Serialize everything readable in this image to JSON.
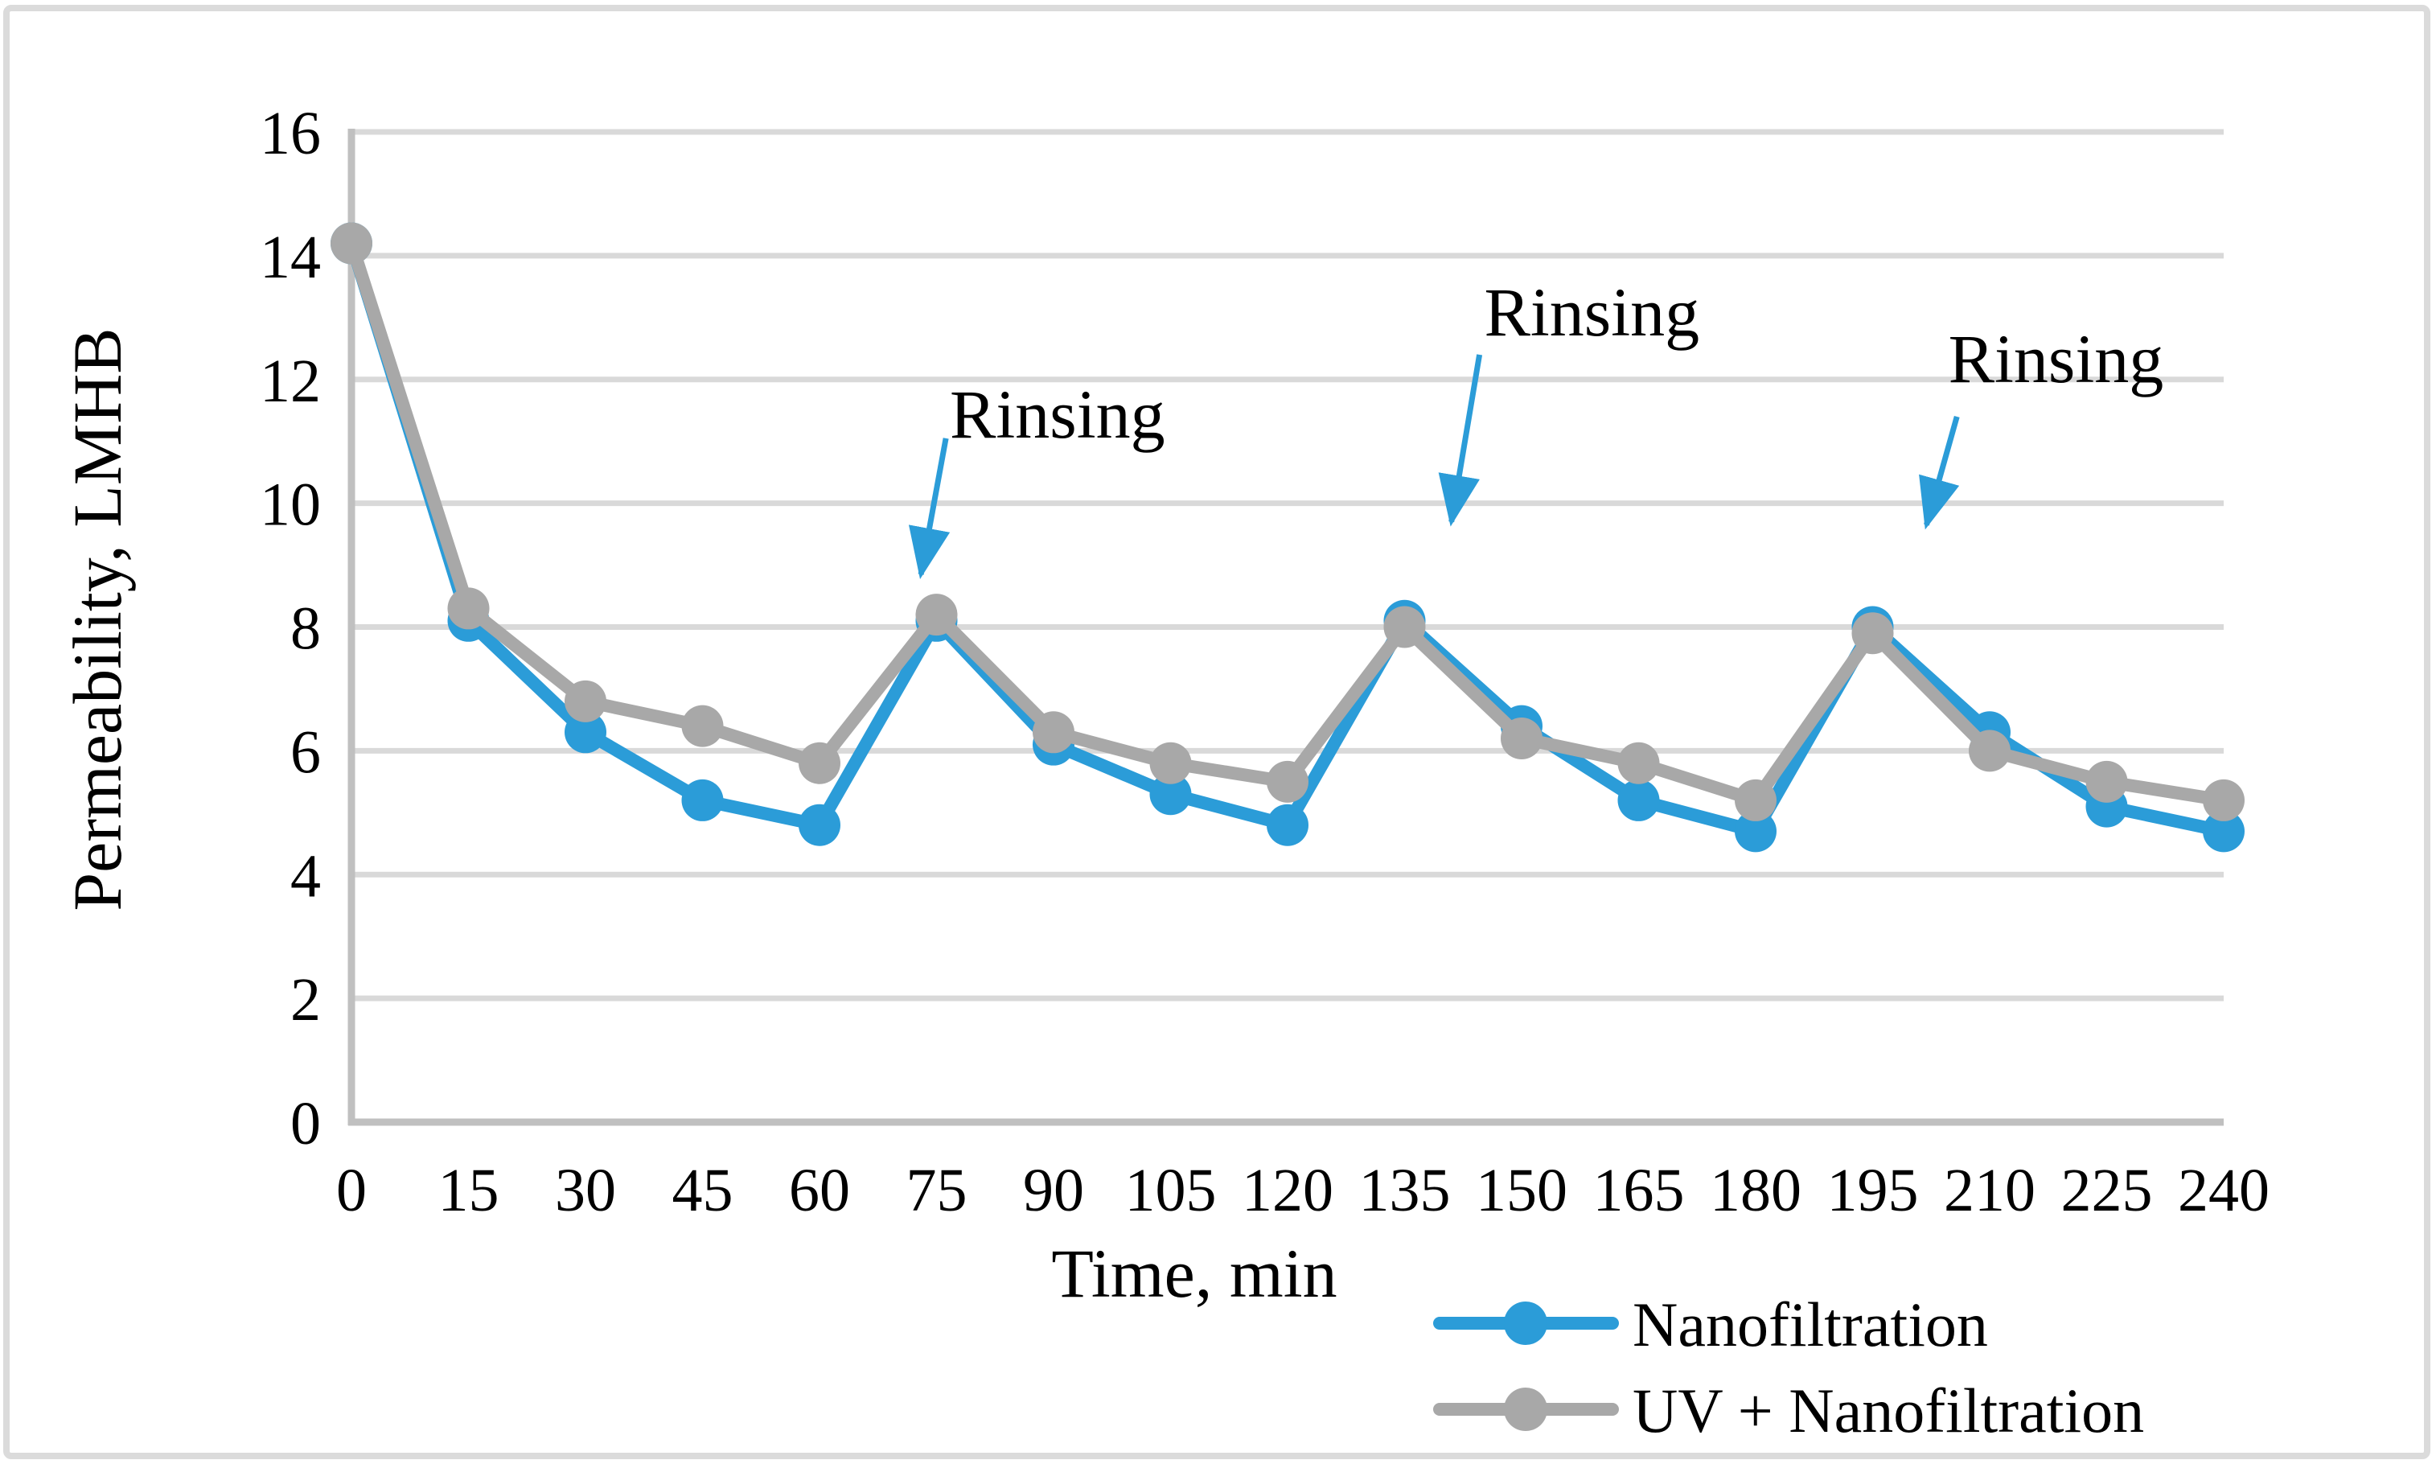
{
  "figure": {
    "background": "#FFFFFF",
    "border_color": "#DBDBDB"
  },
  "chart_data": {
    "type": "line",
    "title": "",
    "xlabel": "Time, min",
    "ylabel": "Permeability, LMHB",
    "x": [
      0,
      15,
      30,
      45,
      60,
      75,
      90,
      105,
      120,
      135,
      150,
      165,
      180,
      195,
      210,
      225,
      240
    ],
    "x_tick_labels": [
      "0",
      "15",
      "30",
      "45",
      "60",
      "75",
      "90",
      "105",
      "120",
      "135",
      "150",
      "165",
      "180",
      "195",
      "210",
      "225",
      "240"
    ],
    "y_ticks": [
      0,
      2,
      4,
      6,
      8,
      10,
      12,
      14,
      16
    ],
    "y_tick_labels": [
      "0",
      "2",
      "4",
      "6",
      "8",
      "10",
      "12",
      "14",
      "16"
    ],
    "ylim": [
      0,
      16
    ],
    "xlim": [
      0,
      240
    ],
    "grid": "horizontal",
    "legend_position": "bottom-right",
    "series": [
      {
        "name": "Nanofiltration",
        "color": "#2B9CD8",
        "values": [
          14.2,
          8.1,
          6.3,
          5.2,
          4.8,
          8.1,
          6.1,
          5.3,
          4.8,
          8.1,
          6.4,
          5.2,
          4.7,
          8.0,
          6.3,
          5.1,
          4.7
        ]
      },
      {
        "name": "UV + Nanofiltration",
        "color": "#A8A8A8",
        "values": [
          14.2,
          8.3,
          6.8,
          6.4,
          5.8,
          8.2,
          6.3,
          5.8,
          5.5,
          8.0,
          6.2,
          5.8,
          5.2,
          7.9,
          6.0,
          5.5,
          5.2
        ]
      }
    ],
    "annotations": [
      {
        "label": "Rinsing",
        "text_x": 90.5,
        "text_y": 11.45,
        "arrow_from_x": 76.2,
        "arrow_from_y": 11.05,
        "arrow_to_x": 73.0,
        "arrow_to_y": 8.85
      },
      {
        "label": "Rinsing",
        "text_x": 159.0,
        "text_y": 13.1,
        "arrow_from_x": 144.6,
        "arrow_from_y": 12.4,
        "arrow_to_x": 141.0,
        "arrow_to_y": 9.7
      },
      {
        "label": "Rinsing",
        "text_x": 218.5,
        "text_y": 12.35,
        "arrow_from_x": 205.8,
        "arrow_from_y": 11.4,
        "arrow_to_x": 201.9,
        "arrow_to_y": 9.65
      }
    ],
    "colors": {
      "gridline": "#D9D9D9",
      "axis_line": "#C0C0C0",
      "arrow": "#2B9CD8",
      "text": "#000000"
    }
  }
}
